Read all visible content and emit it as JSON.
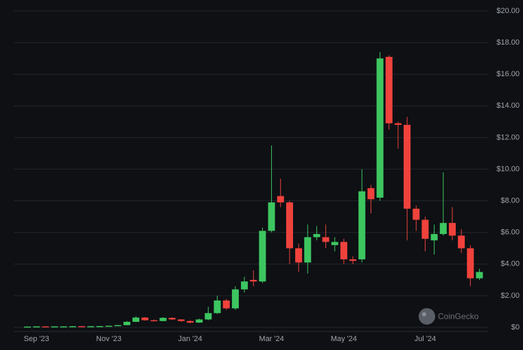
{
  "chart_data": {
    "type": "candlestick",
    "categories": [
      null,
      "Sep '23",
      null,
      null,
      null,
      null,
      null,
      null,
      null,
      "Nov '23",
      null,
      null,
      null,
      null,
      null,
      null,
      null,
      null,
      "Jan '24",
      null,
      null,
      null,
      null,
      null,
      null,
      null,
      null,
      "Mar '24",
      null,
      null,
      null,
      null,
      null,
      null,
      null,
      "May '24",
      null,
      null,
      null,
      null,
      null,
      null,
      null,
      null,
      "Jul '24",
      null,
      null,
      null,
      null,
      null,
      null
    ],
    "open": [
      0.05,
      0.05,
      0.06,
      0.05,
      0.06,
      0.06,
      0.07,
      0.06,
      0.07,
      0.08,
      0.1,
      0.14,
      0.35,
      0.62,
      0.45,
      0.4,
      0.6,
      0.5,
      0.4,
      0.3,
      0.5,
      0.9,
      1.7,
      1.2,
      2.4,
      3.0,
      2.9,
      6.1,
      8.3,
      7.9,
      5.0,
      4.1,
      5.7,
      5.7,
      5.2,
      5.4,
      4.3,
      4.3,
      8.8,
      8.2,
      17.1,
      12.9,
      12.8,
      7.5,
      6.8,
      5.5,
      5.9,
      6.6,
      5.8,
      5.0,
      3.1
    ],
    "high": [
      0.06,
      0.07,
      0.07,
      0.07,
      0.07,
      0.08,
      0.08,
      0.08,
      0.09,
      0.11,
      0.16,
      0.4,
      0.7,
      0.65,
      0.5,
      0.65,
      0.62,
      0.52,
      0.45,
      0.55,
      1.3,
      2.0,
      1.8,
      2.6,
      3.2,
      3.6,
      6.3,
      11.5,
      9.4,
      8.0,
      5.3,
      6.5,
      6.4,
      6.5,
      5.7,
      5.6,
      4.5,
      10.0,
      9.0,
      17.4,
      17.2,
      13.0,
      13.3,
      7.7,
      7.0,
      6.5,
      9.8,
      7.6,
      6.2,
      5.2,
      3.7
    ],
    "low": [
      0.04,
      0.05,
      0.05,
      0.05,
      0.05,
      0.06,
      0.06,
      0.06,
      0.07,
      0.08,
      0.1,
      0.13,
      0.33,
      0.42,
      0.38,
      0.38,
      0.45,
      0.35,
      0.25,
      0.28,
      0.45,
      0.85,
      1.1,
      1.1,
      2.2,
      2.6,
      2.8,
      6.0,
      7.6,
      4.0,
      3.5,
      3.4,
      5.5,
      5.0,
      4.8,
      4.0,
      4.0,
      4.1,
      7.2,
      8.0,
      12.5,
      11.3,
      5.5,
      6.1,
      4.8,
      4.6,
      5.8,
      5.5,
      4.7,
      2.6,
      3.0
    ],
    "close": [
      0.05,
      0.06,
      0.05,
      0.06,
      0.06,
      0.07,
      0.06,
      0.07,
      0.08,
      0.1,
      0.14,
      0.35,
      0.62,
      0.45,
      0.4,
      0.6,
      0.5,
      0.4,
      0.3,
      0.5,
      0.9,
      1.7,
      1.2,
      2.4,
      2.9,
      2.9,
      6.1,
      7.9,
      7.9,
      5.0,
      4.1,
      5.7,
      5.9,
      5.4,
      5.4,
      4.3,
      4.2,
      8.6,
      8.1,
      17.0,
      12.9,
      12.8,
      7.5,
      6.8,
      5.6,
      5.9,
      6.6,
      5.8,
      5.0,
      3.1,
      3.5
    ],
    "up_color": "#3dc660",
    "down_color": "#f0423c",
    "ylim": [
      0,
      20
    ],
    "yticks": [
      {
        "value": 0,
        "label": "$0"
      },
      {
        "value": 2,
        "label": "$2.00"
      },
      {
        "value": 4,
        "label": "$4.00"
      },
      {
        "value": 6,
        "label": "$6.00"
      },
      {
        "value": 8,
        "label": "$8.00"
      },
      {
        "value": 10,
        "label": "$10.00"
      },
      {
        "value": 12,
        "label": "$12.00"
      },
      {
        "value": 14,
        "label": "$14.00"
      },
      {
        "value": 16,
        "label": "$16.00"
      },
      {
        "value": 18,
        "label": "$18.00"
      },
      {
        "value": 20,
        "label": "$20.00"
      }
    ],
    "grid": true,
    "watermark": "CoinGecko"
  }
}
